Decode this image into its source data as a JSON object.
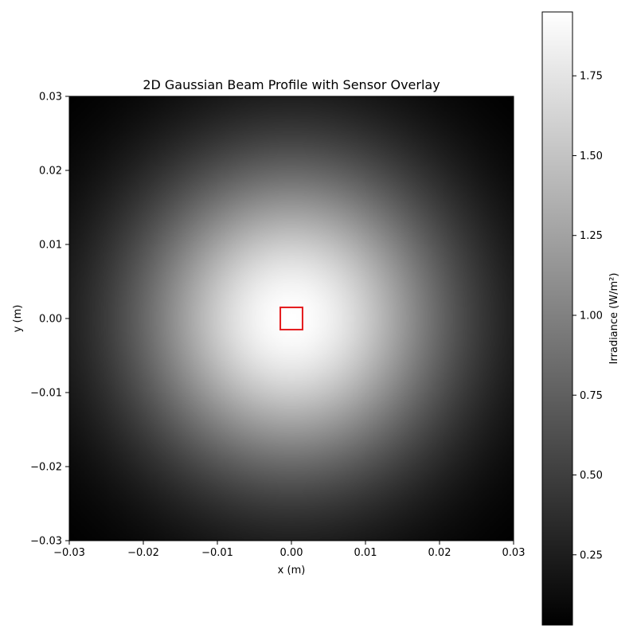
{
  "chart_data": {
    "type": "heatmap",
    "title": "2D Gaussian Beam Profile with Sensor Overlay",
    "xlabel": "x (m)",
    "ylabel": "y (m)",
    "xlim": [
      -0.03,
      0.03
    ],
    "ylim": [
      -0.03,
      0.03
    ],
    "x_ticks": [
      -0.03,
      -0.02,
      -0.01,
      0.0,
      0.01,
      0.02,
      0.03
    ],
    "y_ticks": [
      -0.03,
      -0.02,
      -0.01,
      0.0,
      0.01,
      0.02,
      0.03
    ],
    "x_tick_labels": [
      "−0.03",
      "−0.02",
      "−0.01",
      "0.00",
      "0.01",
      "0.02",
      "0.03"
    ],
    "y_tick_labels": [
      "−0.03",
      "−0.02",
      "−0.01",
      "0.00",
      "0.01",
      "0.02",
      "0.03"
    ],
    "colormap": "gray",
    "grid": false,
    "beam": {
      "center": [
        0.0,
        0.0
      ],
      "peak_irradiance": 1.95,
      "sigma_m": 0.015
    },
    "sensor": {
      "center": [
        0.0,
        0.0
      ],
      "width_m": 0.003,
      "height_m": 0.003,
      "color": "#e41a1c"
    },
    "colorbar": {
      "label": "Irradiance (W/m²)",
      "range": [
        0.03,
        1.95
      ],
      "ticks": [
        0.25,
        0.5,
        0.75,
        1.0,
        1.25,
        1.5,
        1.75
      ],
      "tick_labels": [
        "0.25",
        "0.50",
        "0.75",
        "1.00",
        "1.25",
        "1.50",
        "1.75"
      ]
    }
  }
}
